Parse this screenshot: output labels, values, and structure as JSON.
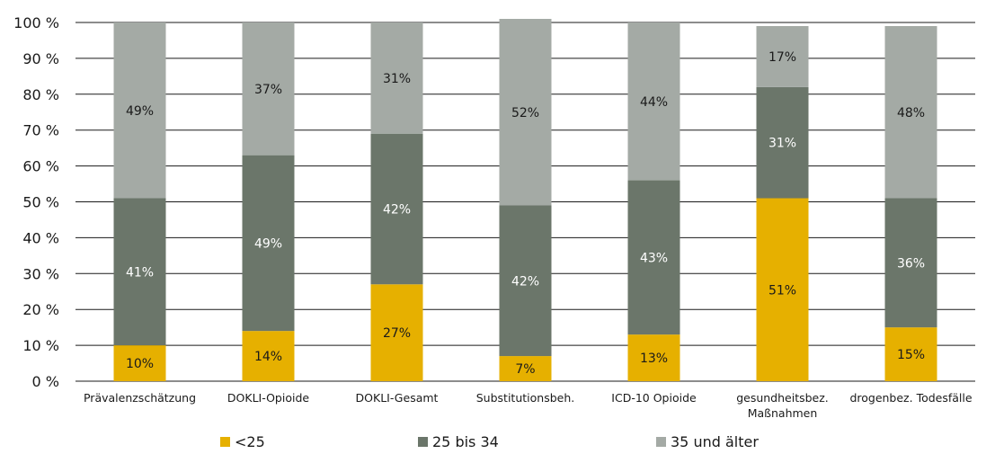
{
  "chart_data": {
    "type": "bar",
    "stacked": true,
    "categories": [
      [
        "Prävalenzschätzung"
      ],
      [
        "DOKLI-Opioide"
      ],
      [
        "DOKLI-Gesamt"
      ],
      [
        "Substitutionsbeh."
      ],
      [
        "ICD-10 Opioide"
      ],
      [
        "gesundheitsbez.",
        "Maßnahmen"
      ],
      [
        "drogenbez. Todesfälle"
      ]
    ],
    "series": [
      {
        "name": "<25",
        "color": "#e6b000",
        "values": [
          10,
          14,
          27,
          7,
          13,
          51,
          15
        ],
        "labels": [
          "10%",
          "14%",
          "27%",
          "7%",
          "13%",
          "51%",
          "15%"
        ],
        "label_color": "#1a1a1a"
      },
      {
        "name": "25 bis 34",
        "color": "#6b766a",
        "values": [
          41,
          49,
          42,
          42,
          43,
          31,
          36
        ],
        "labels": [
          "41%",
          "49%",
          "42%",
          "42%",
          "43%",
          "31%",
          "36%"
        ],
        "label_color": "#ffffff"
      },
      {
        "name": "35 und älter",
        "color": "#a4aaa5",
        "values": [
          49,
          37,
          31,
          52,
          44,
          17,
          48
        ],
        "labels": [
          "49%",
          "37%",
          "31%",
          "52%",
          "44%",
          "17%",
          "48%"
        ],
        "label_color": "#1a1a1a"
      }
    ],
    "ylim": [
      0,
      100
    ],
    "yticks": [
      0,
      10,
      20,
      30,
      40,
      50,
      60,
      70,
      80,
      90,
      100
    ],
    "ytick_labels": [
      "0 %",
      "10 %",
      "20 %",
      "30 %",
      "40 %",
      "50 %",
      "60 %",
      "70 %",
      "80 %",
      "90 %",
      "100 %"
    ],
    "title": "",
    "xlabel": "",
    "ylabel": "",
    "grid": true,
    "legend_position": "bottom"
  }
}
